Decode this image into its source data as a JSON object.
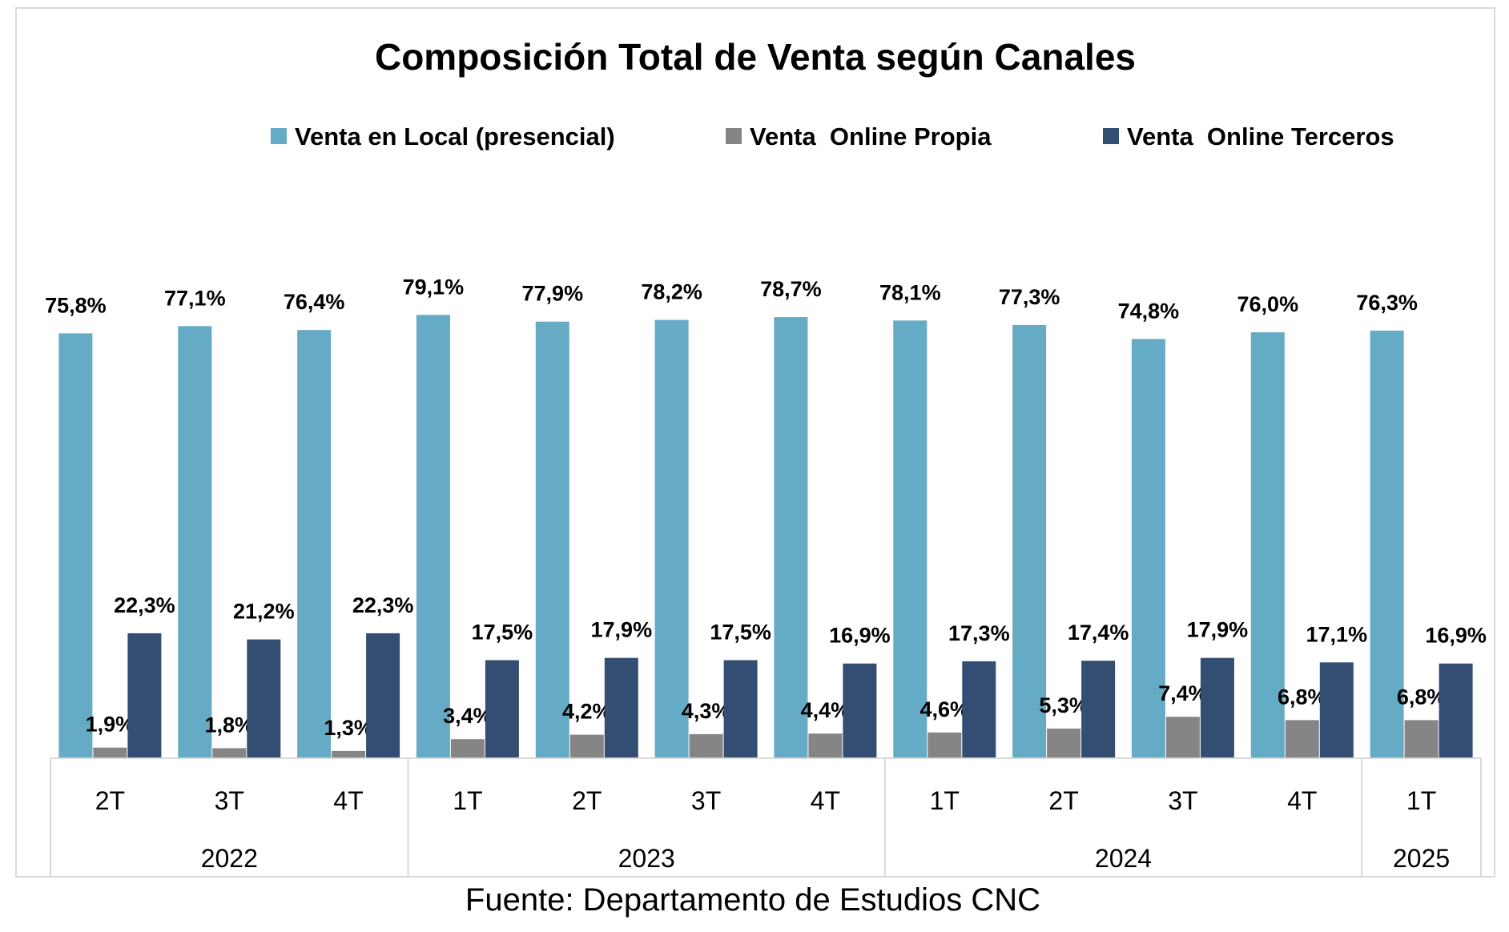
{
  "chart_data": {
    "type": "bar",
    "title": "Composición Total de Venta según Canales",
    "xlabel": "",
    "ylabel": "",
    "ylim": [
      0,
      100
    ],
    "grid": false,
    "legend_position": "top",
    "categories": [
      "2T",
      "3T",
      "4T",
      "1T",
      "2T",
      "3T",
      "4T",
      "1T",
      "2T",
      "3T",
      "4T",
      "1T"
    ],
    "year_groups": [
      {
        "label": "2022",
        "count": 3
      },
      {
        "label": "2023",
        "count": 4
      },
      {
        "label": "2024",
        "count": 4
      },
      {
        "label": "2025",
        "count": 1
      }
    ],
    "series": [
      {
        "name": "Venta en Local (presencial)",
        "color": "#66abc5",
        "values": [
          75.8,
          77.1,
          76.4,
          79.1,
          77.9,
          78.2,
          78.7,
          78.1,
          77.3,
          74.8,
          76.0,
          76.3
        ],
        "labels": [
          "75,8%",
          "77,1%",
          "76,4%",
          "79,1%",
          "77,9%",
          "78,2%",
          "78,7%",
          "78,1%",
          "77,3%",
          "74,8%",
          "76,0%",
          "76,3%"
        ]
      },
      {
        "name": "Venta  Online Propia",
        "color": "#858585",
        "values": [
          1.9,
          1.8,
          1.3,
          3.4,
          4.2,
          4.3,
          4.4,
          4.6,
          5.3,
          7.4,
          6.8,
          6.8
        ],
        "labels": [
          "1,9%",
          "1,8%",
          "1,3%",
          "3,4%",
          "4,2%",
          "4,3%",
          "4,4%",
          "4,6%",
          "5,3%",
          "7,4%",
          "6,8%",
          "6,8%"
        ]
      },
      {
        "name": "Venta  Online Terceros",
        "color": "#344d73",
        "values": [
          22.3,
          21.2,
          22.3,
          17.5,
          17.9,
          17.5,
          16.9,
          17.3,
          17.4,
          17.9,
          17.1,
          16.9
        ],
        "labels": [
          "22,3%",
          "21,2%",
          "22,3%",
          "17,5%",
          "17,9%",
          "17,5%",
          "16,9%",
          "17,3%",
          "17,4%",
          "17,9%",
          "17,1%",
          "16,9%"
        ]
      }
    ],
    "source": "Fuente: Departamento de Estudios CNC"
  },
  "colors": {
    "frame_border": "#d9d9d9",
    "axis_line": "#d9d9d9"
  }
}
